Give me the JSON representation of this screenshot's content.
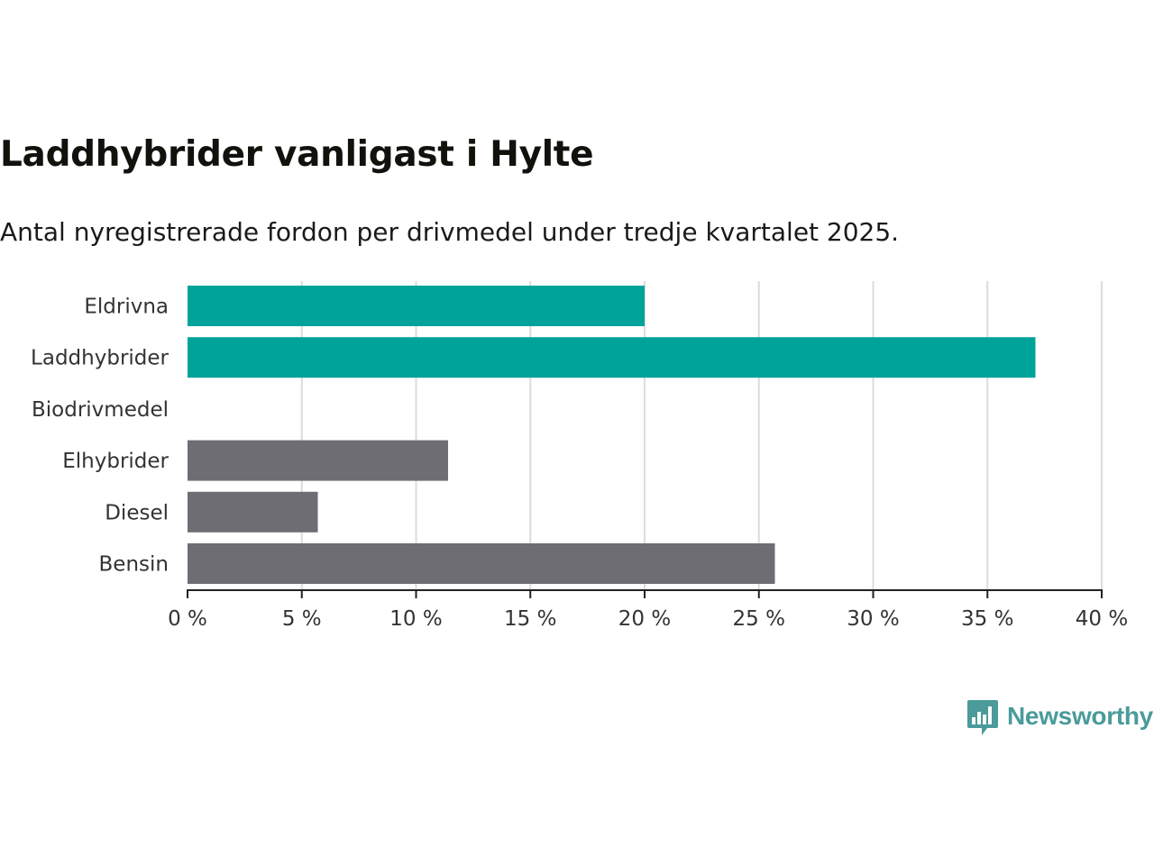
{
  "chart_data": {
    "type": "bar",
    "orientation": "horizontal",
    "title": "Laddhybrider vanligast i Hylte",
    "subtitle": "Antal nyregistrerade fordon per drivmedel under tredje kvartalet 2025.",
    "categories": [
      "Eldrivna",
      "Laddhybrider",
      "Biodrivmedel",
      "Elhybrider",
      "Diesel",
      "Bensin"
    ],
    "values": [
      20.0,
      37.1,
      0,
      11.4,
      5.7,
      25.7
    ],
    "bar_colors": [
      "#00a39a",
      "#00a39a",
      "#6e6d73",
      "#6e6d73",
      "#6e6d73",
      "#6e6d73"
    ],
    "xlim": [
      0,
      40
    ],
    "xticks": [
      0,
      5,
      10,
      15,
      20,
      25,
      30,
      35,
      40
    ],
    "xtick_labels": [
      "0 %",
      "5 %",
      "10 %",
      "15 %",
      "20 %",
      "25 %",
      "30 %",
      "35 %",
      "40 %"
    ],
    "xlabel": "",
    "ylabel": "",
    "grid": "vertical"
  },
  "brand": {
    "name": "Newsworthy",
    "color": "#4a9b9a"
  },
  "colors": {
    "gridline": "#dcdcdc",
    "axis": "#222222"
  }
}
